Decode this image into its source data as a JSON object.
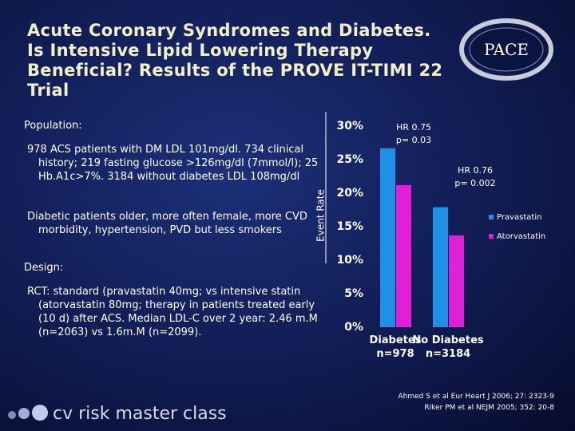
{
  "slide": {
    "title": "Acute Coronary Syndromes and Diabetes. Is Intensive Lipid Lowering Therapy Beneficial? Results of the PROVE IT-TIMI 22 Trial",
    "logo": "PACE",
    "population_heading": "Population:",
    "population_items": [
      "978 ACS patients with DM  LDL 101mg/dl. 734 clinical history; 219 fasting glucose >126mg/dl (7mmol/l); 25 Hb.A1c>7%. 3184 without diabetes LDL 108mg/dl",
      "Diabetic patients older, more often female, more CVD morbidity, hypertension, PVD but less smokers"
    ],
    "design_heading": "Design:",
    "design_items": [
      "RCT: standard (pravastatin 40mg; vs intensive statin (atorvastatin 80mg; therapy in patients treated early (10 d) after ACS. Median LDL-C over 2 year: 2.46 m.M (n=2063) vs 1.6m.M (n=2099)."
    ],
    "citations": [
      "Ahmed S et al Eur Heart J 2006; 27: 2323-9",
      "Riker PM et al NEJM 2005; 352: 20-8"
    ],
    "footer": "cv risk master class"
  },
  "chart_data": {
    "type": "bar",
    "y_label": "Event Rate",
    "categories": [
      "Diabetes\nn=978",
      "No Diabetes\nn=3184"
    ],
    "series": [
      {
        "name": "Pravastatin",
        "color": "#1e90e6",
        "values": [
          26.7,
          17.9
        ]
      },
      {
        "name": "Atorvastatin",
        "color": "#e020d6",
        "values": [
          21.2,
          13.7
        ]
      }
    ],
    "ylim": [
      0,
      30
    ],
    "yticks": [
      {
        "value": 0,
        "label": "0%"
      },
      {
        "value": 5,
        "label": "5%"
      },
      {
        "value": 10,
        "label": "10%"
      },
      {
        "value": 15,
        "label": "15%"
      },
      {
        "value": 20,
        "label": "20%"
      },
      {
        "value": 25,
        "label": "25%"
      },
      {
        "value": 30,
        "label": "30%"
      }
    ],
    "annotations": [
      "HR 0.75\np= 0.03",
      "HR 0.76\np= 0.002"
    ],
    "legend": "right"
  }
}
